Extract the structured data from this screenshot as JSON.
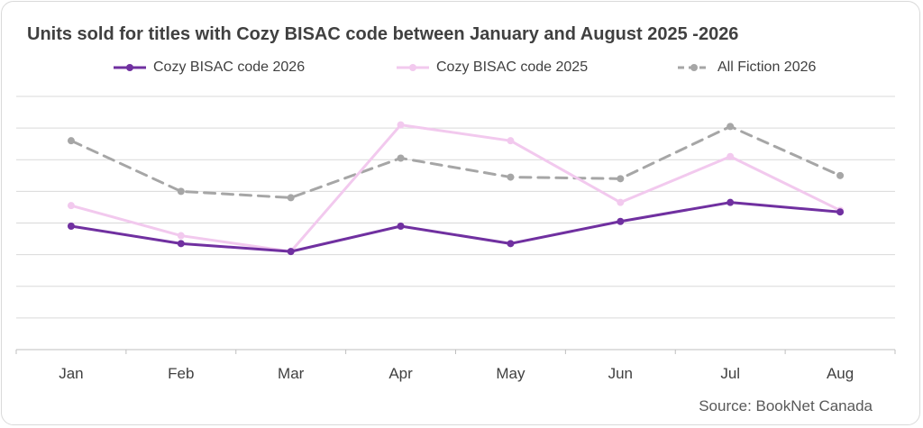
{
  "title": "Units sold for titles with Cozy BISAC code between January and August 2025 -2026",
  "source": "Source: BookNet Canada",
  "chart_data": {
    "type": "line",
    "title": "Units sold for titles with Cozy BISAC code between January and August 2025 -2026",
    "xlabel": "",
    "ylabel": "",
    "categories": [
      "Jan",
      "Feb",
      "Mar",
      "Apr",
      "May",
      "Jun",
      "Jul",
      "Aug"
    ],
    "ylim": [
      0,
      8
    ],
    "grid": true,
    "legend_position": "top",
    "y_tick_labels_shown": false,
    "series": [
      {
        "name": "Cozy BISAC code 2026",
        "color": "#7030a0",
        "style": "solid",
        "values": [
          3.9,
          3.35,
          3.1,
          3.9,
          3.35,
          4.05,
          4.65,
          4.35
        ]
      },
      {
        "name": "Cozy BISAC code 2025",
        "color": "#f2c9ee",
        "style": "solid",
        "values": [
          4.55,
          3.6,
          3.1,
          7.1,
          6.6,
          4.65,
          6.1,
          4.4
        ]
      },
      {
        "name": "All Fiction 2026",
        "color": "#a6a6a6",
        "style": "dashed",
        "values": [
          6.6,
          5.0,
          4.8,
          6.05,
          5.45,
          5.4,
          7.05,
          5.5
        ]
      }
    ]
  }
}
